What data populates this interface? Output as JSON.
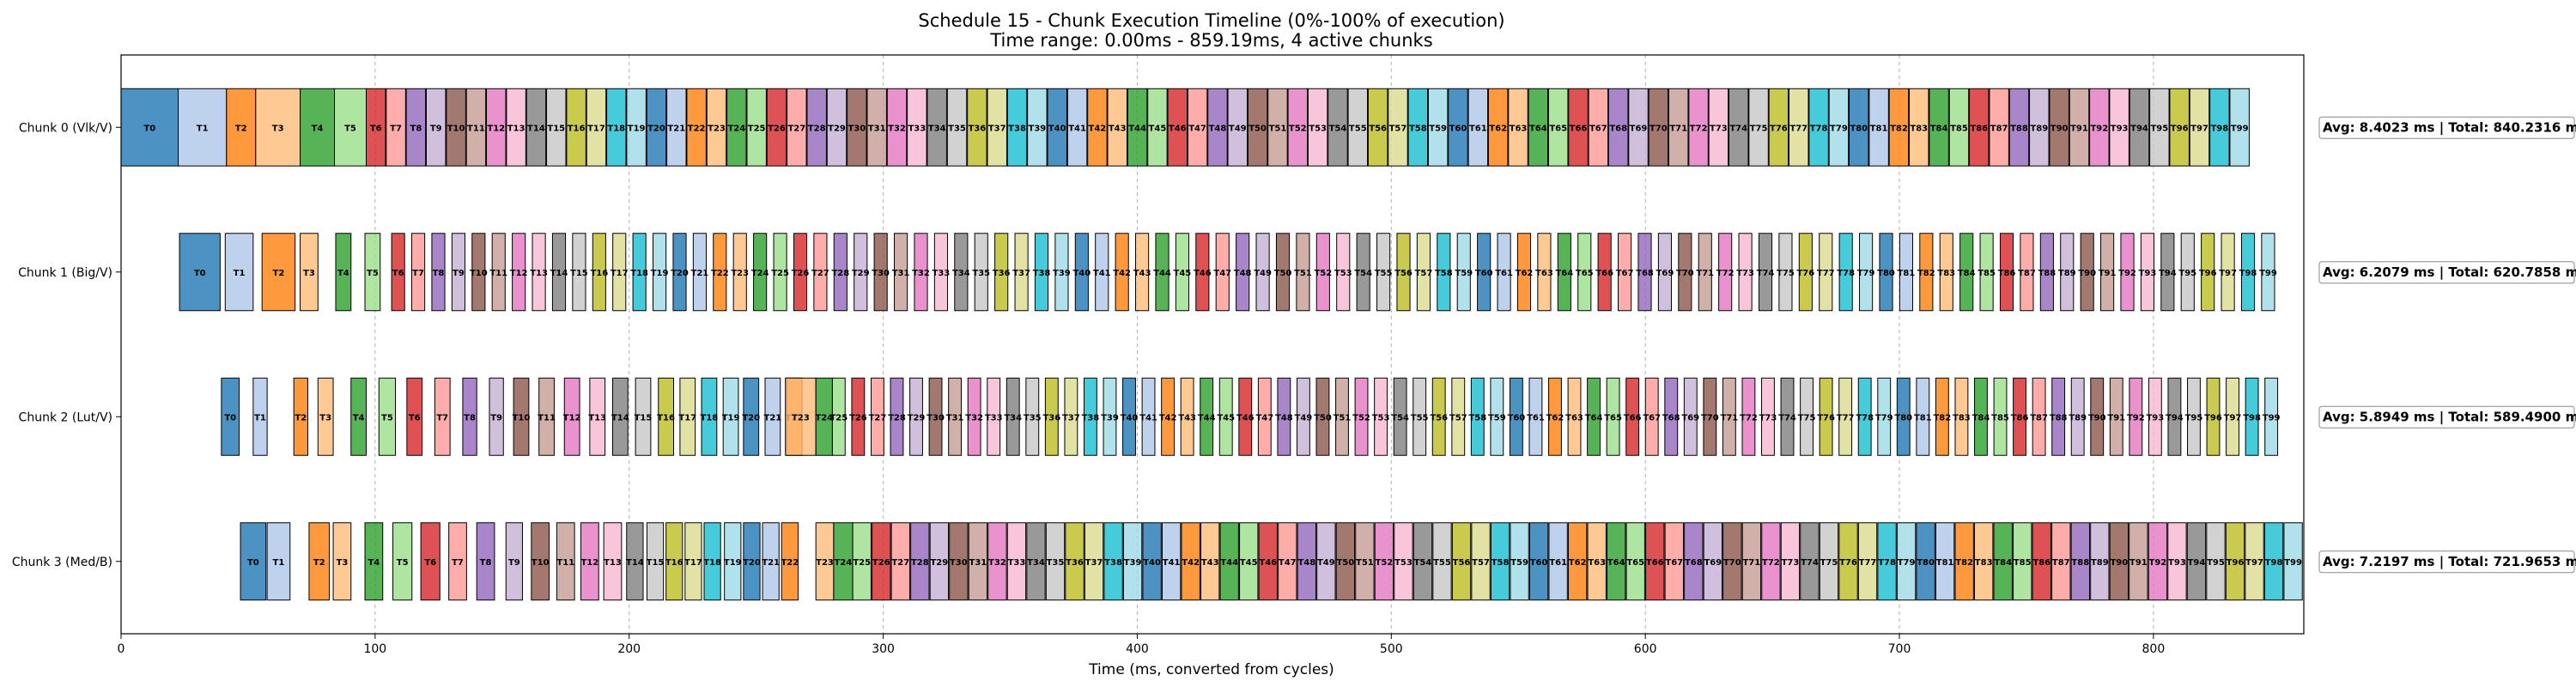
{
  "chart_data": {
    "type": "bar",
    "title": "Schedule 15 - Chunk Execution Timeline (0%-100% of execution)",
    "subtitle": "Time range: 0.00ms - 859.19ms, 4 active chunks",
    "xlabel": "Time (ms, converted from cycles)",
    "xlim": [
      0,
      859.19
    ],
    "xticks": [
      0,
      100,
      200,
      300,
      400,
      500,
      600,
      700,
      800
    ],
    "grid_x": true,
    "palette": [
      "#1f77b4",
      "#aec7e8",
      "#ff7f0e",
      "#ffbb78",
      "#2ca02c",
      "#98df8a",
      "#d62728",
      "#ff9896",
      "#9467bd",
      "#c5b0d5",
      "#8c564b",
      "#c49c94",
      "#e377c2",
      "#f7b6d2",
      "#7f7f7f",
      "#c7c7c7",
      "#bcbd22",
      "#dbdb8d",
      "#17becf",
      "#9edae5"
    ],
    "series": [
      {
        "name": "Chunk 0 (Vlk/V)",
        "summary": "Avg: 8.4023 ms | Total: 840.2316 ms",
        "tasks": [
          {
            "label": "T0",
            "start": 0.0,
            "end": 22.5
          },
          {
            "label": "T1",
            "start": 22.5,
            "end": 41.5
          },
          {
            "label": "T2",
            "start": 41.5,
            "end": 53.0
          },
          {
            "label": "T3",
            "start": 53.0,
            "end": 70.5
          },
          {
            "label": "T4",
            "start": 70.5,
            "end": 84.0
          },
          {
            "label": "T5",
            "start": 84.0,
            "end": 96.5
          }
        ],
        "uniform": {
          "first": 6,
          "last": 99,
          "start": 96.5,
          "end": 838.0,
          "gap": 0.3
        }
      },
      {
        "name": "Chunk 1 (Big/V)",
        "summary": "Avg: 6.2079 ms | Total: 620.7858 ms",
        "tasks": [
          {
            "label": "T0",
            "start": 23.0,
            "end": 39.0
          },
          {
            "label": "T1",
            "start": 41.0,
            "end": 52.0
          },
          {
            "label": "T2",
            "start": 55.5,
            "end": 68.5
          },
          {
            "label": "T3",
            "start": 70.5,
            "end": 77.5
          },
          {
            "label": "T4",
            "start": 84.5,
            "end": 90.5
          },
          {
            "label": "T5",
            "start": 96.0,
            "end": 102.0
          }
        ],
        "uniform": {
          "first": 6,
          "last": 99,
          "start": 106.5,
          "end": 850.5,
          "gap": 2.8
        }
      },
      {
        "name": "Chunk 2 (Lut/V)",
        "summary": "Avg: 5.8949 ms | Total: 589.4900 ms",
        "tasks": [
          {
            "label": "T0",
            "start": 39.5,
            "end": 46.5
          },
          {
            "label": "T1",
            "start": 52.0,
            "end": 57.5
          },
          {
            "label": "T2",
            "start": 68.0,
            "end": 73.5
          },
          {
            "label": "T3",
            "start": 77.5,
            "end": 83.5
          },
          {
            "label": "T4",
            "start": 90.5,
            "end": 96.5
          },
          {
            "label": "T5",
            "start": 101.5,
            "end": 108.0
          },
          {
            "label": "T6",
            "start": 112.5,
            "end": 118.5
          },
          {
            "label": "T7",
            "start": 123.5,
            "end": 129.5
          },
          {
            "label": "T8",
            "start": 134.5,
            "end": 140.0
          },
          {
            "label": "T9",
            "start": 145.0,
            "end": 150.5
          },
          {
            "label": "T10",
            "start": 154.5,
            "end": 160.5
          },
          {
            "label": "T11",
            "start": 164.5,
            "end": 170.5
          },
          {
            "label": "T12",
            "start": 174.5,
            "end": 180.5
          },
          {
            "label": "T13",
            "start": 184.5,
            "end": 190.5
          },
          {
            "label": "T14",
            "start": 193.5,
            "end": 199.5
          },
          {
            "label": "T15",
            "start": 202.5,
            "end": 208.5
          },
          {
            "label": "T16",
            "start": 211.5,
            "end": 217.5
          },
          {
            "label": "T17",
            "start": 220.0,
            "end": 226.0
          },
          {
            "label": "T18",
            "start": 228.5,
            "end": 234.5
          },
          {
            "label": "T19",
            "start": 237.0,
            "end": 243.0
          },
          {
            "label": "T20",
            "start": 245.0,
            "end": 251.0
          },
          {
            "label": "T21",
            "start": 253.5,
            "end": 259.5
          },
          {
            "label": "T22",
            "start": 262.0,
            "end": 268.0
          },
          {
            "label": "T23",
            "start": 261.5,
            "end": 273.5
          },
          {
            "label": "T24",
            "start": 273.5,
            "end": 280.0
          }
        ],
        "uniform": {
          "first": 25,
          "last": 99,
          "start": 280.0,
          "end": 851.5,
          "gap": 2.6
        }
      },
      {
        "name": "Chunk 3 (Med/B)",
        "summary": "Avg: 7.2197 ms | Total: 721.9653 ms",
        "tasks": [
          {
            "label": "T0",
            "start": 47.0,
            "end": 57.0
          },
          {
            "label": "T1",
            "start": 57.5,
            "end": 66.5
          },
          {
            "label": "T2",
            "start": 74.0,
            "end": 82.0
          },
          {
            "label": "T3",
            "start": 83.5,
            "end": 90.5
          },
          {
            "label": "T4",
            "start": 96.0,
            "end": 103.0
          },
          {
            "label": "T5",
            "start": 107.0,
            "end": 114.5
          },
          {
            "label": "T6",
            "start": 118.0,
            "end": 125.5
          },
          {
            "label": "T7",
            "start": 129.0,
            "end": 136.0
          },
          {
            "label": "T8",
            "start": 140.0,
            "end": 147.0
          },
          {
            "label": "T9",
            "start": 151.5,
            "end": 158.0
          },
          {
            "label": "T10",
            "start": 161.5,
            "end": 168.5
          },
          {
            "label": "T11",
            "start": 171.5,
            "end": 178.5
          },
          {
            "label": "T12",
            "start": 181.0,
            "end": 188.0
          },
          {
            "label": "T13",
            "start": 190.0,
            "end": 197.0
          },
          {
            "label": "T14",
            "start": 199.0,
            "end": 205.5
          },
          {
            "label": "T15",
            "start": 207.0,
            "end": 213.5
          },
          {
            "label": "T16",
            "start": 214.5,
            "end": 221.0
          },
          {
            "label": "T17",
            "start": 222.0,
            "end": 228.5
          },
          {
            "label": "T18",
            "start": 229.5,
            "end": 236.0
          },
          {
            "label": "T19",
            "start": 237.5,
            "end": 244.0
          },
          {
            "label": "T20",
            "start": 245.0,
            "end": 251.5
          },
          {
            "label": "T21",
            "start": 252.5,
            "end": 259.0
          },
          {
            "label": "T22",
            "start": 260.0,
            "end": 266.5
          },
          {
            "label": "T23",
            "start": 273.5,
            "end": 280.5
          },
          {
            "label": "T24",
            "start": 280.5,
            "end": 288.0
          }
        ],
        "uniform": {
          "first": 25,
          "last": 99,
          "start": 288.0,
          "end": 859.0,
          "gap": 0.4
        }
      }
    ]
  }
}
